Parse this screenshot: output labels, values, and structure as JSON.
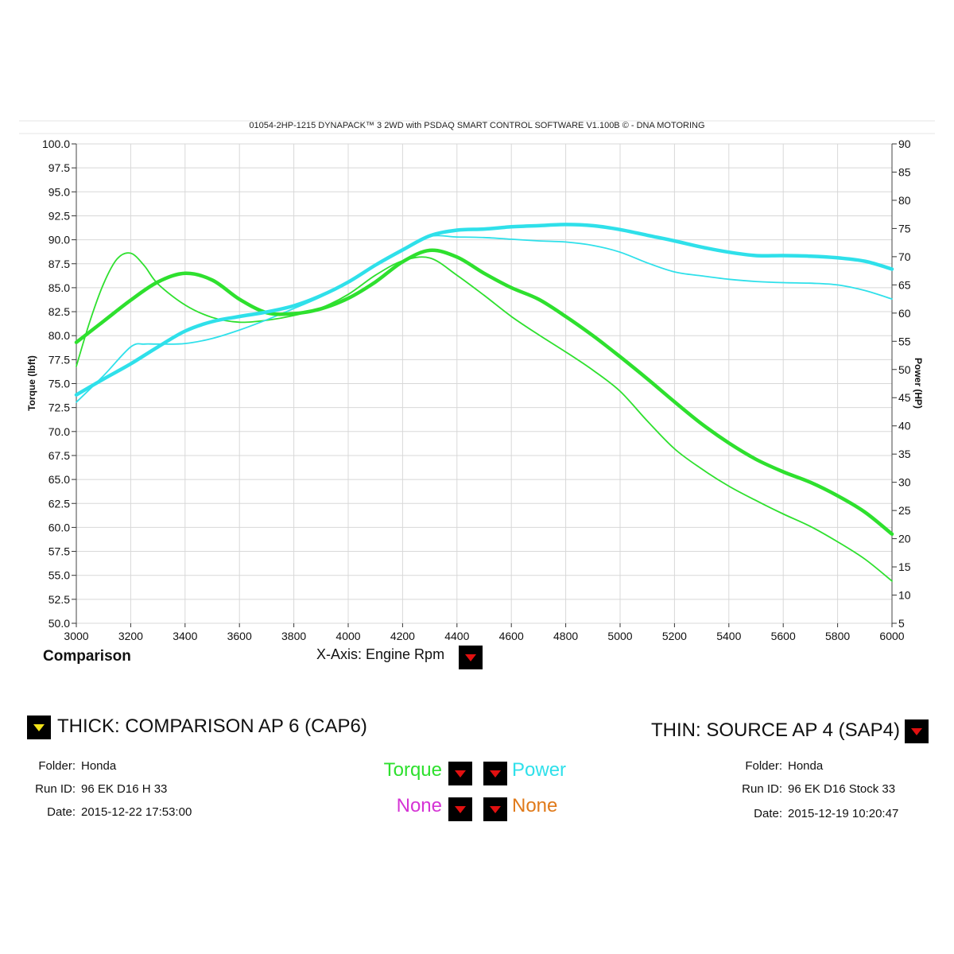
{
  "header": {
    "title": "01054-2HP-1215 DYNAPACK™ 3 2WD with PSDAQ SMART CONTROL SOFTWARE V1.100B © - DNA MOTORING",
    "comparison_label": "Comparison",
    "x_axis_selector": "X-Axis: Engine Rpm"
  },
  "colors": {
    "torque": "#2ee02e",
    "power": "#2fe0ea",
    "none_left": "#d534d5",
    "none_right": "#e07a1a",
    "grid": "#d8d8d8",
    "dropdown_arrow": "#e11010"
  },
  "chart_data": {
    "type": "line",
    "title": "01054-2HP-1215 DYNAPACK™ 3 2WD with PSDAQ SMART CONTROL SOFTWARE V1.100B © - DNA MOTORING",
    "xlabel": "",
    "ylabel_left": "Torque (lbft)",
    "ylabel_right": "Power (HP)",
    "xlim": [
      3000,
      6000
    ],
    "ylim_left": [
      50,
      100
    ],
    "ylim_right": [
      5,
      90
    ],
    "x_ticks": [
      3000,
      3200,
      3400,
      3600,
      3800,
      4000,
      4200,
      4400,
      4600,
      4800,
      5000,
      5200,
      5400,
      5600,
      5800,
      6000
    ],
    "y_left_ticks": [
      "50.0",
      "52.5",
      "55.0",
      "57.5",
      "60.0",
      "62.5",
      "65.0",
      "67.5",
      "70.0",
      "72.5",
      "75.0",
      "77.5",
      "80.0",
      "82.5",
      "85.0",
      "87.5",
      "90.0",
      "92.5",
      "95.0",
      "97.5",
      "100.0"
    ],
    "y_right_ticks": [
      5,
      10,
      15,
      20,
      25,
      30,
      35,
      40,
      45,
      50,
      55,
      60,
      65,
      70,
      75,
      80,
      85,
      90
    ],
    "grid": true,
    "series": [
      {
        "name": "Torque",
        "run": "THICK",
        "axis": "left",
        "x": [
          3000,
          3100,
          3200,
          3300,
          3400,
          3500,
          3600,
          3700,
          3800,
          3900,
          4000,
          4100,
          4200,
          4300,
          4400,
          4500,
          4600,
          4700,
          4800,
          4900,
          5000,
          5100,
          5200,
          5300,
          5400,
          5500,
          5600,
          5700,
          5800,
          5900,
          6000
        ],
        "y": [
          79.3,
          81.5,
          83.7,
          85.6,
          86.5,
          85.8,
          83.8,
          82.4,
          82.3,
          82.8,
          83.9,
          85.6,
          87.7,
          88.9,
          88.2,
          86.5,
          85.0,
          83.8,
          82.0,
          80.0,
          77.8,
          75.5,
          73.1,
          70.8,
          68.8,
          67.1,
          65.8,
          64.7,
          63.3,
          61.6,
          59.3
        ]
      },
      {
        "name": "Power",
        "run": "THICK",
        "axis": "right",
        "x": [
          3000,
          3100,
          3200,
          3300,
          3400,
          3500,
          3600,
          3700,
          3800,
          3900,
          4000,
          4100,
          4200,
          4300,
          4400,
          4500,
          4600,
          4700,
          4800,
          4900,
          5000,
          5100,
          5200,
          5300,
          5400,
          5500,
          5600,
          5700,
          5800,
          5900,
          6000
        ],
        "y": [
          45.5,
          48.3,
          51.0,
          54.0,
          56.8,
          58.5,
          59.4,
          60.2,
          61.3,
          63.1,
          65.5,
          68.5,
          71.2,
          73.7,
          74.7,
          74.9,
          75.3,
          75.5,
          75.7,
          75.5,
          74.8,
          73.8,
          72.8,
          71.7,
          70.8,
          70.2,
          70.2,
          70.1,
          69.8,
          69.2,
          67.8
        ]
      },
      {
        "name": "Torque",
        "run": "THIN",
        "axis": "left",
        "x": [
          3000,
          3050,
          3100,
          3150,
          3200,
          3250,
          3300,
          3400,
          3500,
          3600,
          3700,
          3800,
          3900,
          4000,
          4100,
          4200,
          4300,
          4400,
          4500,
          4600,
          4700,
          4800,
          4900,
          5000,
          5100,
          5200,
          5300,
          5400,
          5500,
          5600,
          5700,
          5800,
          5900,
          6000
        ],
        "y": [
          76.8,
          81.5,
          85.4,
          88.0,
          88.6,
          87.3,
          85.4,
          83.2,
          81.9,
          81.4,
          81.6,
          82.1,
          82.9,
          84.3,
          86.3,
          87.8,
          88.1,
          86.3,
          84.2,
          82.0,
          80.1,
          78.3,
          76.4,
          74.2,
          71.1,
          68.2,
          66.1,
          64.3,
          62.8,
          61.4,
          60.1,
          58.5,
          56.7,
          54.4
        ]
      },
      {
        "name": "Power",
        "run": "THIN",
        "axis": "right",
        "x": [
          3000,
          3100,
          3200,
          3250,
          3300,
          3400,
          3500,
          3600,
          3700,
          3800,
          3900,
          4000,
          4100,
          4200,
          4300,
          4400,
          4500,
          4600,
          4700,
          4800,
          4900,
          5000,
          5100,
          5200,
          5300,
          5400,
          5500,
          5600,
          5700,
          5800,
          5900,
          6000
        ],
        "y": [
          44.2,
          48.9,
          54.0,
          54.5,
          54.5,
          54.6,
          55.5,
          57.0,
          58.8,
          60.8,
          62.9,
          65.5,
          68.5,
          71.4,
          73.6,
          73.5,
          73.4,
          73.1,
          72.8,
          72.6,
          72.0,
          70.8,
          68.9,
          67.3,
          66.6,
          66.0,
          65.6,
          65.4,
          65.3,
          65.0,
          64.0,
          62.5
        ]
      }
    ]
  },
  "legend": {
    "thick_label": "THICK: COMPARISON AP 6 (CAP6)",
    "thin_label": "THIN: SOURCE AP 4 (SAP4)",
    "left_info": {
      "folder_label": "Folder:",
      "folder_value": "Honda",
      "run_label": "Run ID:",
      "run_value": "96 EK D16 H 33",
      "date_label": "Date:",
      "date_value": "2015-12-22 17:53:00"
    },
    "right_info": {
      "folder_label": "Folder:",
      "folder_value": "Honda",
      "run_label": "Run ID:",
      "run_value": "96 EK D16 Stock 33",
      "date_label": "Date:",
      "date_value": "2015-12-19 10:20:47"
    },
    "selectors": {
      "channel_1": "Torque",
      "channel_2": "Power",
      "channel_3": "None",
      "channel_4": "None"
    }
  }
}
